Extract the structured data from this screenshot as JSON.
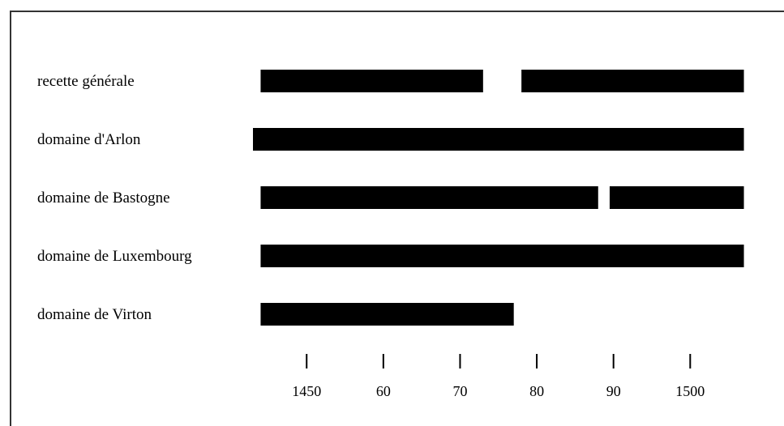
{
  "chart_data": {
    "type": "bar",
    "title": "",
    "xlabel": "",
    "ylabel": "",
    "xlim": [
      1443,
      1508
    ],
    "x_ticks": [
      {
        "value": 1450,
        "label": "1450"
      },
      {
        "value": 1460,
        "label": "60"
      },
      {
        "value": 1470,
        "label": "70"
      },
      {
        "value": 1480,
        "label": "80"
      },
      {
        "value": 1490,
        "label": "90"
      },
      {
        "value": 1500,
        "label": "1500"
      }
    ],
    "categories": [
      "recette générale",
      "domaine d'Arlon",
      "domaine de Bastogne",
      "domaine de Luxembourg",
      "domaine de Virton"
    ],
    "series": [
      {
        "category": "recette générale",
        "ranges": [
          [
            1444,
            1473
          ],
          [
            1478,
            1507
          ]
        ]
      },
      {
        "category": "domaine d'Arlon",
        "ranges": [
          [
            1443,
            1507
          ]
        ]
      },
      {
        "category": "domaine de Bastogne",
        "ranges": [
          [
            1444,
            1488
          ],
          [
            1489.5,
            1507
          ]
        ]
      },
      {
        "category": "domaine de Luxembourg",
        "ranges": [
          [
            1444,
            1507
          ]
        ]
      },
      {
        "category": "domaine de Virton",
        "ranges": [
          [
            1444,
            1477
          ]
        ]
      }
    ],
    "grid": false,
    "legend": "none",
    "colors": {
      "bar": "#000000",
      "frame": "#333333",
      "background": "#ffffff"
    }
  }
}
